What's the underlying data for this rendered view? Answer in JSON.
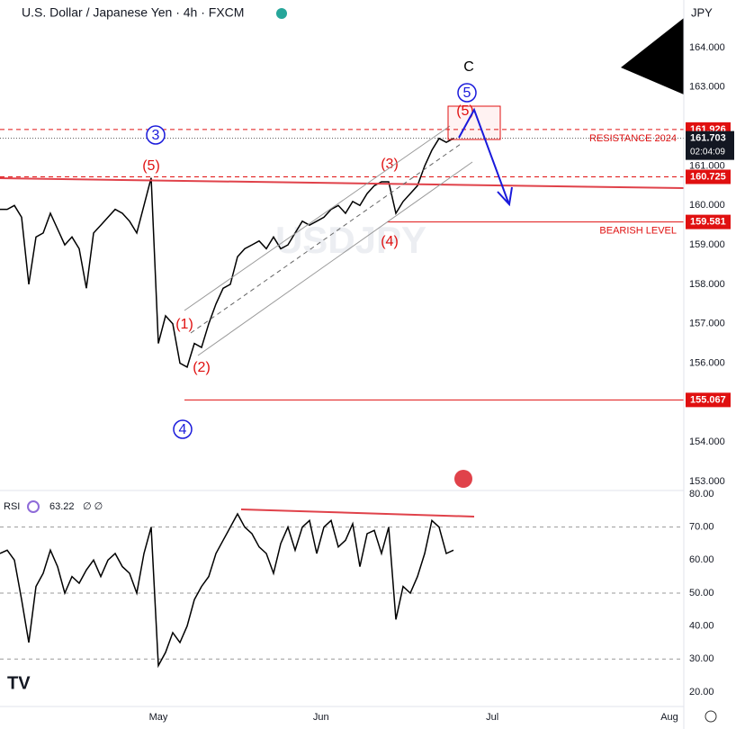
{
  "chart_data": [
    {
      "type": "line",
      "title": "U.S. Dollar / Japanese Yen · 4h · FXCM",
      "currency": "JPY",
      "watermark": "USDJPY",
      "color": "#000000",
      "x": [
        0,
        1,
        2,
        3,
        4,
        5,
        6,
        7,
        8,
        9,
        10,
        11,
        12,
        13,
        14,
        15,
        16,
        17,
        18,
        19,
        20,
        21,
        22,
        23,
        24,
        25,
        26,
        27,
        28,
        29,
        30,
        31,
        32,
        33,
        34,
        35,
        36,
        37,
        38,
        39,
        40,
        41,
        42,
        43,
        44,
        45,
        46,
        47,
        48,
        49,
        50,
        51,
        52,
        53,
        54,
        55,
        56,
        57,
        58,
        59,
        60,
        61,
        62,
        63
      ],
      "values": [
        159.9,
        159.9,
        160.0,
        159.7,
        158.0,
        159.2,
        159.3,
        159.8,
        159.4,
        159.0,
        159.2,
        158.9,
        157.9,
        159.3,
        159.5,
        159.7,
        159.9,
        159.8,
        159.6,
        159.3,
        160.0,
        160.7,
        156.5,
        157.2,
        157.0,
        156.0,
        155.9,
        156.5,
        156.4,
        157.0,
        157.5,
        157.9,
        158.0,
        158.7,
        158.9,
        159.0,
        159.1,
        158.9,
        159.2,
        158.9,
        159.0,
        159.3,
        159.6,
        159.5,
        159.6,
        159.7,
        159.9,
        160.0,
        159.8,
        160.1,
        160.0,
        160.3,
        160.5,
        160.6,
        160.6,
        159.8,
        160.1,
        160.3,
        160.5,
        161.0,
        161.4,
        161.7,
        161.6,
        161.7
      ],
      "xlim": [
        0,
        95
      ],
      "xticks": [
        {
          "value": 22,
          "label": "May"
        },
        {
          "value": 44.6,
          "label": "Jun"
        },
        {
          "value": 68.4,
          "label": "Jul"
        },
        {
          "value": 93,
          "label": "Aug"
        }
      ],
      "ylim": [
        152.77,
        165.21
      ],
      "yticks": [
        {
          "value": 153,
          "label": "153.000"
        },
        {
          "value": 154,
          "label": "154.000"
        },
        {
          "value": 155,
          "label": "155.000"
        },
        {
          "value": 156,
          "label": "156.000"
        },
        {
          "value": 157,
          "label": "157.000"
        },
        {
          "value": 158,
          "label": "158.000"
        },
        {
          "value": 159,
          "label": "159.000"
        },
        {
          "value": 160,
          "label": "160.000"
        },
        {
          "value": 161,
          "label": "161.000"
        },
        {
          "value": 162,
          "label": "162.000"
        },
        {
          "value": 163,
          "label": "163.000"
        },
        {
          "value": 164,
          "label": "164.000"
        }
      ],
      "levels": [
        {
          "value": 161.926,
          "text": "RESISTANCE 2024",
          "style": "dashed"
        },
        {
          "value": 160.725,
          "style": "dashed"
        },
        {
          "value": 159.581,
          "text": "BEARISH LEVEL",
          "style": "solid"
        },
        {
          "value": 155.067,
          "style": "solid"
        }
      ],
      "last_price": 161.703,
      "countdown": "02:04:09",
      "annotations": [
        {
          "text": "C",
          "color": "#000000"
        },
        {
          "text": "5",
          "color": "#1a1adb",
          "circle": true
        },
        {
          "text": "(5)",
          "color": "#e01010"
        },
        {
          "text": "3",
          "color": "#1a1adb",
          "circle": true
        },
        {
          "text": "(5)",
          "color": "#e01010"
        },
        {
          "text": "(3)",
          "color": "#e01010"
        },
        {
          "text": "(4)",
          "color": "#e01010"
        },
        {
          "text": "(1)",
          "color": "#e01010"
        },
        {
          "text": "(2)",
          "color": "#e01010"
        },
        {
          "text": "4",
          "color": "#1a1adb",
          "circle": true
        }
      ]
    },
    {
      "type": "line",
      "title": "RSI",
      "last_value": 63.22,
      "color": "#000000",
      "x": [
        0,
        1,
        2,
        3,
        4,
        5,
        6,
        7,
        8,
        9,
        10,
        11,
        12,
        13,
        14,
        15,
        16,
        17,
        18,
        19,
        20,
        21,
        22,
        23,
        24,
        25,
        26,
        27,
        28,
        29,
        30,
        31,
        32,
        33,
        34,
        35,
        36,
        37,
        38,
        39,
        40,
        41,
        42,
        43,
        44,
        45,
        46,
        47,
        48,
        49,
        50,
        51,
        52,
        53,
        54,
        55,
        56,
        57,
        58,
        59,
        60,
        61,
        62,
        63
      ],
      "values": [
        62,
        63,
        60,
        48,
        35,
        52,
        56,
        63,
        58,
        50,
        55,
        53,
        57,
        60,
        55,
        60,
        62,
        58,
        56,
        50,
        62,
        70,
        28,
        32,
        38,
        35,
        40,
        48,
        52,
        55,
        62,
        66,
        70,
        74,
        70,
        68,
        64,
        62,
        56,
        65,
        70,
        63,
        70,
        72,
        62,
        70,
        72,
        64,
        66,
        71,
        58,
        68,
        69,
        62,
        70,
        42,
        52,
        50,
        55,
        62,
        72,
        70,
        62,
        63
      ],
      "xlim": [
        0,
        95
      ],
      "ylim": [
        15.6,
        81.1
      ],
      "yticks": [
        {
          "value": 20,
          "label": "20.00"
        },
        {
          "value": 30,
          "label": "30.00"
        },
        {
          "value": 40,
          "label": "40.00"
        },
        {
          "value": 50,
          "label": "50.00"
        },
        {
          "value": 60,
          "label": "60.00"
        },
        {
          "value": 70,
          "label": "70.00"
        },
        {
          "value": 80,
          "label": "80.00"
        }
      ]
    }
  ]
}
